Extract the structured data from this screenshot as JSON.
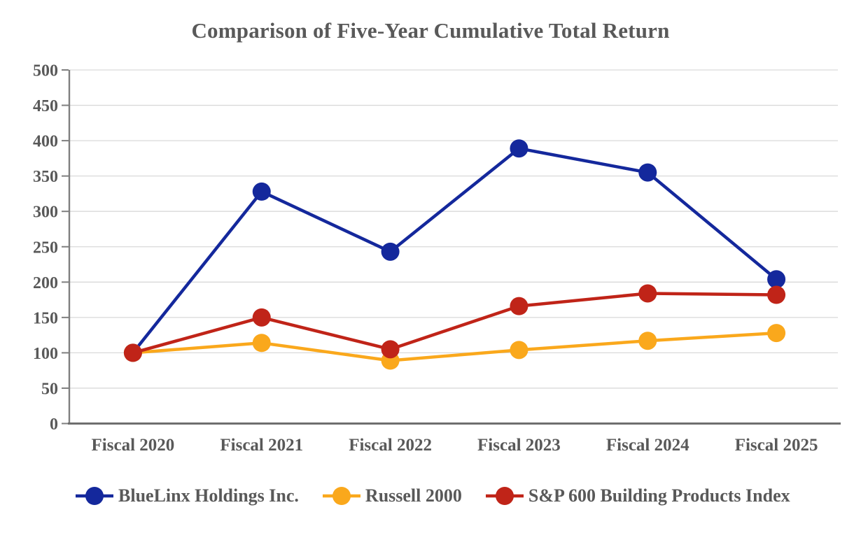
{
  "chart_data": {
    "type": "line",
    "title": "Comparison of Five-Year Cumulative Total Return",
    "categories": [
      "Fiscal 2020",
      "Fiscal 2021",
      "Fiscal 2022",
      "Fiscal 2023",
      "Fiscal 2024",
      "Fiscal 2025"
    ],
    "series": [
      {
        "name": "BlueLinx Holdings Inc.",
        "color": "#14289C",
        "values": [
          100,
          328,
          243,
          389,
          355,
          204
        ]
      },
      {
        "name": "Russell 2000",
        "color": "#FAA81C",
        "values": [
          100,
          114,
          89,
          104,
          117,
          128
        ]
      },
      {
        "name": "S&P 600 Building Products Index",
        "color": "#C02418",
        "values": [
          100,
          150,
          105,
          166,
          184,
          182
        ]
      }
    ],
    "ylim": [
      0,
      500
    ],
    "ytick_step": 50,
    "yticks": [
      0,
      50,
      100,
      150,
      200,
      250,
      300,
      350,
      400,
      450,
      500
    ],
    "grid": "horizontal",
    "legend_position": "bottom",
    "draw_order_note": "red series drawn on top; all series overlap at 100 in Fiscal 2020",
    "styles": {
      "text_color": "#595959",
      "grid_color": "#D9D9D9",
      "axis_color": "#7F7F7F",
      "baseline_color": "#6E6E6E",
      "background": "#FFFFFF"
    }
  }
}
